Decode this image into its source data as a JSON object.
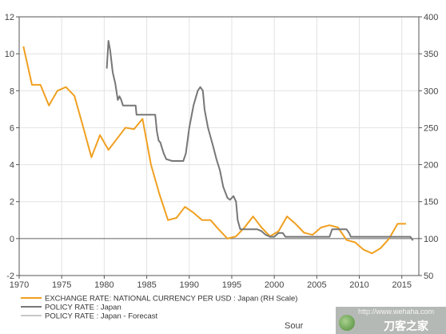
{
  "chart_data": {
    "type": "line",
    "title": "",
    "xlabel": "",
    "ylabel": "",
    "xlim": [
      1970,
      2017
    ],
    "ylim_left": [
      -2,
      12
    ],
    "ylim_right": [
      50,
      400
    ],
    "x_ticks": [
      "1970",
      "1975",
      "1980",
      "1985",
      "1990",
      "1995",
      "2000",
      "2005",
      "2010",
      "2015"
    ],
    "y_ticks_left": [
      "-2",
      "0",
      "2",
      "4",
      "6",
      "8",
      "10",
      "12"
    ],
    "y_ticks_right": [
      "50",
      "100",
      "150",
      "200",
      "250",
      "300",
      "350",
      "400"
    ],
    "grid": true,
    "legend_position": "bottom-left",
    "series": [
      {
        "name": "EXCHANGE RATE: NATIONAL CURRENCY PER USD : Japan (RH Scale)",
        "axis": "right",
        "color": "#f0a020",
        "points": [
          [
            1970.5,
            360
          ],
          [
            1971.5,
            308
          ],
          [
            1972.5,
            308
          ],
          [
            1973.5,
            280
          ],
          [
            1974.5,
            300
          ],
          [
            1975.5,
            305
          ],
          [
            1976.5,
            293
          ],
          [
            1977.5,
            252
          ],
          [
            1978.5,
            210
          ],
          [
            1979.5,
            240
          ],
          [
            1980.5,
            220
          ],
          [
            1981.5,
            235
          ],
          [
            1982.5,
            250
          ],
          [
            1983.5,
            248
          ],
          [
            1984.5,
            262
          ],
          [
            1985.5,
            200
          ],
          [
            1986.5,
            160
          ],
          [
            1987.5,
            125
          ],
          [
            1988.5,
            128
          ],
          [
            1989.5,
            143
          ],
          [
            1990.5,
            135
          ],
          [
            1991.5,
            125
          ],
          [
            1992.5,
            125
          ],
          [
            1993.5,
            112
          ],
          [
            1994.5,
            100
          ],
          [
            1995.5,
            103
          ],
          [
            1996.5,
            115
          ],
          [
            1997.5,
            130
          ],
          [
            1998.5,
            115
          ],
          [
            1999.5,
            103
          ],
          [
            2000.5,
            110
          ],
          [
            2001.5,
            130
          ],
          [
            2002.5,
            120
          ],
          [
            2003.5,
            108
          ],
          [
            2004.5,
            105
          ],
          [
            2005.5,
            115
          ],
          [
            2006.5,
            118
          ],
          [
            2007.5,
            115
          ],
          [
            2008.5,
            98
          ],
          [
            2009.5,
            95
          ],
          [
            2010.5,
            85
          ],
          [
            2011.5,
            80
          ],
          [
            2012.5,
            87
          ],
          [
            2013.5,
            100
          ],
          [
            2014.5,
            120
          ],
          [
            2015.5,
            120
          ]
        ]
      },
      {
        "name": "POLICY RATE : Japan",
        "axis": "left",
        "color": "#777777",
        "points": [
          [
            1980.3,
            9.2
          ],
          [
            1980.5,
            10.7
          ],
          [
            1980.7,
            10.2
          ],
          [
            1981.0,
            9.0
          ],
          [
            1981.3,
            8.4
          ],
          [
            1981.6,
            7.5
          ],
          [
            1981.8,
            7.7
          ],
          [
            1982.0,
            7.5
          ],
          [
            1982.2,
            7.2
          ],
          [
            1983.0,
            7.2
          ],
          [
            1983.7,
            7.2
          ],
          [
            1983.8,
            6.7
          ],
          [
            1984.5,
            6.7
          ],
          [
            1985.5,
            6.7
          ],
          [
            1986.0,
            6.7
          ],
          [
            1986.2,
            5.8
          ],
          [
            1986.4,
            5.3
          ],
          [
            1986.6,
            5.2
          ],
          [
            1986.8,
            4.9
          ],
          [
            1987.0,
            4.6
          ],
          [
            1987.3,
            4.3
          ],
          [
            1988.0,
            4.2
          ],
          [
            1989.0,
            4.2
          ],
          [
            1989.3,
            4.2
          ],
          [
            1989.6,
            4.6
          ],
          [
            1990.0,
            6.0
          ],
          [
            1990.5,
            7.2
          ],
          [
            1991.0,
            8.0
          ],
          [
            1991.3,
            8.2
          ],
          [
            1991.6,
            8.0
          ],
          [
            1991.8,
            7.0
          ],
          [
            1992.2,
            6.0
          ],
          [
            1992.8,
            5.0
          ],
          [
            1993.2,
            4.3
          ],
          [
            1993.6,
            3.7
          ],
          [
            1994.0,
            2.8
          ],
          [
            1994.5,
            2.2
          ],
          [
            1994.8,
            2.1
          ],
          [
            1995.2,
            2.3
          ],
          [
            1995.5,
            2.0
          ],
          [
            1995.7,
            1.0
          ],
          [
            1996.0,
            0.5
          ],
          [
            1997.0,
            0.5
          ],
          [
            1998.0,
            0.5
          ],
          [
            1998.5,
            0.4
          ],
          [
            1999.0,
            0.2
          ],
          [
            1999.5,
            0.1
          ],
          [
            2000.0,
            0.1
          ],
          [
            2000.5,
            0.3
          ],
          [
            2001.0,
            0.3
          ],
          [
            2001.3,
            0.1
          ],
          [
            2002.0,
            0.1
          ],
          [
            2003.0,
            0.1
          ],
          [
            2004.0,
            0.1
          ],
          [
            2005.0,
            0.1
          ],
          [
            2006.0,
            0.1
          ],
          [
            2006.5,
            0.1
          ],
          [
            2006.8,
            0.5
          ],
          [
            2007.5,
            0.5
          ],
          [
            2008.0,
            0.5
          ],
          [
            2008.5,
            0.5
          ],
          [
            2008.8,
            0.3
          ],
          [
            2009.0,
            0.1
          ],
          [
            2010.0,
            0.1
          ],
          [
            2011.0,
            0.1
          ],
          [
            2012.0,
            0.1
          ],
          [
            2013.0,
            0.1
          ],
          [
            2014.0,
            0.1
          ],
          [
            2015.0,
            0.1
          ],
          [
            2016.0,
            0.1
          ],
          [
            2016.3,
            -0.1
          ]
        ]
      },
      {
        "name": "POLICY RATE : Japan - Forecast",
        "axis": "left",
        "color": "#c8c8c8",
        "points": []
      }
    ]
  },
  "source_label": "Sour",
  "watermark": {
    "url": "http://www.wehaha.com",
    "name": "刀客之家"
  }
}
